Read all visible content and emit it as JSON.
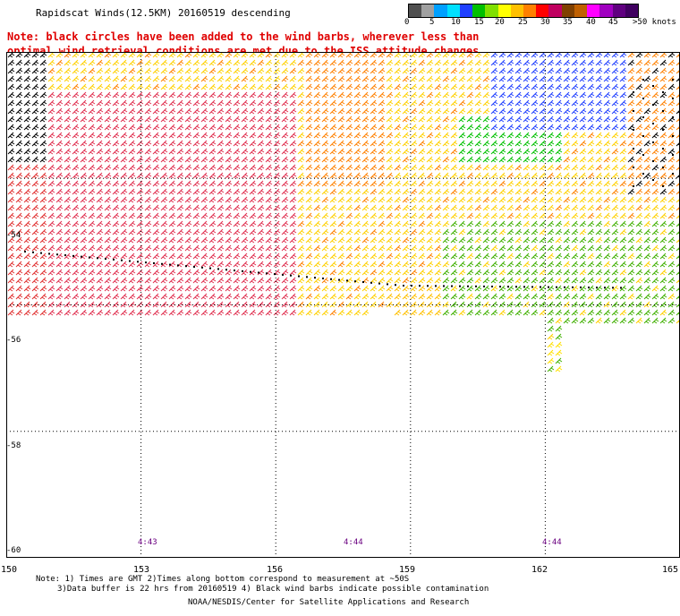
{
  "title": "Rapidscat Winds(12.5KM) 20160519 descending",
  "note_line1": "Note: black circles have been added to the wind barbs, wherever less than",
  "note_line2": "optimal wind retrieval conditions are met due to the ISS attitude changes.",
  "legend": {
    "colors": [
      "#505050",
      "#a0a0a0",
      "#00a0ff",
      "#00e0ff",
      "#2040ff",
      "#00c000",
      "#80e000",
      "#ffff00",
      "#ffc000",
      "#ff8000",
      "#ff0000",
      "#c00060",
      "#804000",
      "#c06000",
      "#ff00ff",
      "#a000c0",
      "#600080",
      "#400060"
    ],
    "labels": [
      "0",
      "5",
      "10",
      "15",
      "20",
      "25",
      "30",
      "35",
      "40",
      "45",
      ">50 knots"
    ]
  },
  "lat_labels": [
    "-54",
    "-56",
    "-58",
    "-60"
  ],
  "lon_labels": [
    "150",
    "153",
    "156",
    "159",
    "162",
    "165"
  ],
  "times": [
    "4:43",
    "4:44",
    "4:44"
  ],
  "footnote_line1": "Note: 1) Times are GMT 2)Times along bottom correspond to measurement at ~50S",
  "footnote_line2": "3)Data buffer is 22 hrs from 20160519 4) Black wind barbs indicate possible contamination",
  "credit": "NOAA/NESDIS/Center for Satellite Applications and Research",
  "map": {
    "lon_min": 150,
    "lon_max": 165,
    "lat_top": -52,
    "lat_bottom": -60
  }
}
